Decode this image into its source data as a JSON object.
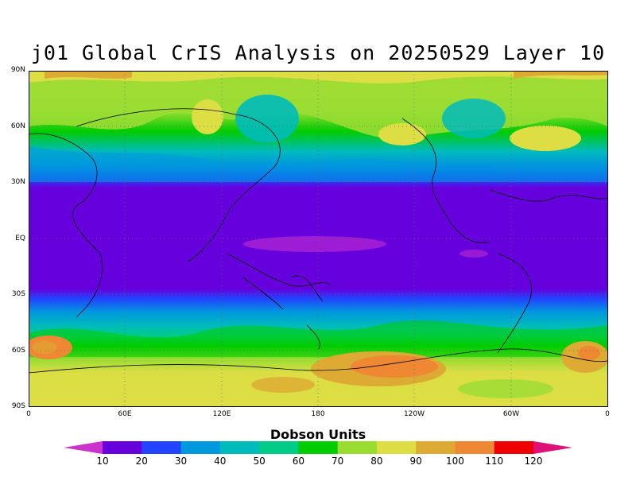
{
  "title": "j01 Global CrIS Analysis on 20250529 Layer 10",
  "lat_labels": [
    "90N",
    "60N",
    "30N",
    "EQ",
    "30S",
    "60S",
    "90S"
  ],
  "lon_labels": [
    "0",
    "60E",
    "120E",
    "180",
    "120W",
    "60W",
    "0"
  ],
  "colorbar": {
    "title": "Dobson Units",
    "labels": [
      "10",
      "20",
      "30",
      "40",
      "50",
      "60",
      "70",
      "80",
      "90",
      "100",
      "110",
      "120"
    ],
    "colors": [
      "#cc33cc",
      "#6600dd",
      "#2244ff",
      "#0099dd",
      "#00bbbb",
      "#00cc88",
      "#00cc00",
      "#99dd33",
      "#dddd44",
      "#ddaa33",
      "#ee8833",
      "#ee0000",
      "#dd1177"
    ]
  }
}
